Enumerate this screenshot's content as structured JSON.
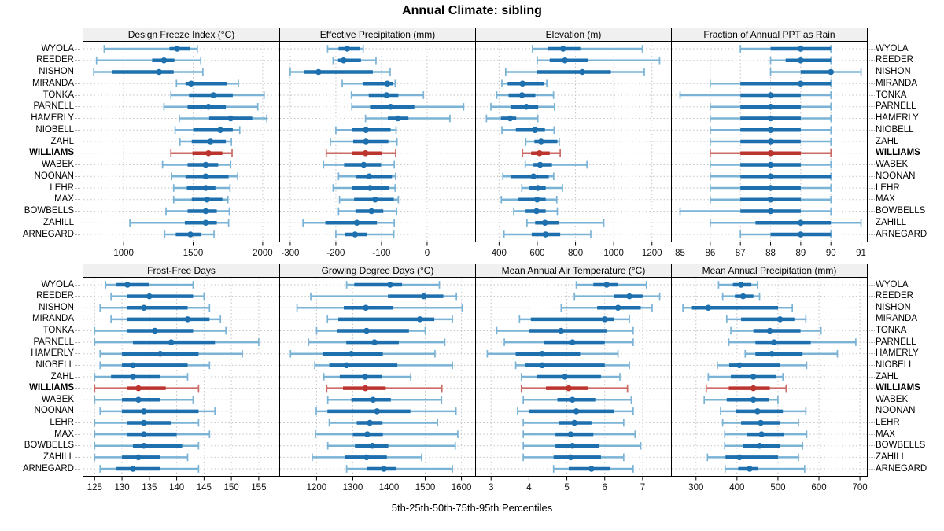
{
  "title": "Annual Climate: sibling",
  "caption": "5th-25th-50th-75th-95th Percentiles",
  "percentile_labels": [
    "5th",
    "25th",
    "50th",
    "75th",
    "95th"
  ],
  "stations": [
    "WYOLA",
    "REEDER",
    "NISHON",
    "MIRANDA",
    "TONKA",
    "PARNELL",
    "HAMERLY",
    "NIOBELL",
    "ZAHL",
    "WILLIAMS",
    "WABEK",
    "NOONAN",
    "LEHR",
    "MAX",
    "BOWBELLS",
    "ZAHILL",
    "ARNEGARD"
  ],
  "highlight_station": "WILLIAMS",
  "colors": {
    "blue": "#1d6fad",
    "blue_light": "#7ab3d6",
    "red": "#bb342e",
    "red_light": "#cc6b66",
    "grid": "#c6c6c6",
    "border": "#000000",
    "header_bg": "#f0f0f0"
  },
  "chart_data": [
    {
      "type": "dot-whisker",
      "title": "Design Freeze Index (°C)",
      "row": 1,
      "col": 1,
      "ticks": [
        1000,
        1500,
        2000
      ],
      "xlim": [
        705,
        2125
      ],
      "values": [
        [
          860,
          1330,
          1385,
          1475,
          1530
        ],
        [
          805,
          1205,
          1290,
          1365,
          1555
        ],
        [
          785,
          915,
          1255,
          1360,
          1570
        ],
        [
          1380,
          1445,
          1485,
          1745,
          1825
        ],
        [
          1340,
          1470,
          1645,
          1785,
          2010
        ],
        [
          1290,
          1460,
          1610,
          1735,
          1965
        ],
        [
          1400,
          1615,
          1770,
          1925,
          2030
        ],
        [
          1370,
          1500,
          1695,
          1785,
          1835
        ],
        [
          1405,
          1490,
          1625,
          1735,
          1775
        ],
        [
          1340,
          1495,
          1610,
          1710,
          1780
        ],
        [
          1280,
          1460,
          1590,
          1680,
          1770
        ],
        [
          1345,
          1445,
          1590,
          1755,
          1820
        ],
        [
          1360,
          1455,
          1590,
          1660,
          1765
        ],
        [
          1360,
          1490,
          1600,
          1710,
          1750
        ],
        [
          1305,
          1460,
          1590,
          1670,
          1760
        ],
        [
          1045,
          1440,
          1590,
          1670,
          1755
        ],
        [
          1295,
          1375,
          1480,
          1555,
          1650
        ]
      ]
    },
    {
      "type": "dot-whisker",
      "title": "Effective Precipitation (mm)",
      "row": 1,
      "col": 2,
      "ticks": [
        -300,
        -200,
        -100,
        0
      ],
      "xlim": [
        -324,
        107
      ],
      "values": [
        [
          -218,
          -194,
          -175,
          -148,
          -140
        ],
        [
          -206,
          -195,
          -183,
          -145,
          -112
        ],
        [
          -300,
          -270,
          -238,
          -119,
          -81
        ],
        [
          -186,
          -140,
          -87,
          -74,
          -70
        ],
        [
          -166,
          -128,
          -89,
          -63,
          -8
        ],
        [
          -165,
          -125,
          -80,
          -28,
          80
        ],
        [
          -135,
          -86,
          -64,
          -41,
          50
        ],
        [
          -200,
          -164,
          -134,
          -80,
          -68
        ],
        [
          -212,
          -162,
          -134,
          -85,
          -66
        ],
        [
          -221,
          -165,
          -135,
          -99,
          -69
        ],
        [
          -227,
          -182,
          -139,
          -101,
          -72
        ],
        [
          -194,
          -155,
          -127,
          -77,
          -69
        ],
        [
          -206,
          -165,
          -125,
          -84,
          -70
        ],
        [
          -192,
          -160,
          -114,
          -73,
          -63
        ],
        [
          -194,
          -157,
          -122,
          -96,
          -67
        ],
        [
          -272,
          -223,
          -154,
          -110,
          -72
        ],
        [
          -200,
          -180,
          -158,
          -132,
          -73
        ]
      ]
    },
    {
      "type": "dot-whisker",
      "title": "Elevation (m)",
      "row": 1,
      "col": 3,
      "ticks": [
        400,
        600,
        800,
        1000,
        1200
      ],
      "xlim": [
        275,
        1304
      ],
      "values": [
        [
          575,
          655,
          735,
          825,
          1150
        ],
        [
          600,
          665,
          745,
          865,
          1240
        ],
        [
          435,
          600,
          835,
          985,
          1160
        ],
        [
          415,
          445,
          523,
          635,
          650
        ],
        [
          388,
          450,
          520,
          590,
          685
        ],
        [
          357,
          460,
          543,
          605,
          690
        ],
        [
          334,
          410,
          458,
          490,
          603
        ],
        [
          415,
          488,
          588,
          640,
          688
        ],
        [
          540,
          585,
          620,
          705,
          715
        ],
        [
          523,
          568,
          612,
          665,
          720
        ],
        [
          537,
          580,
          615,
          677,
          860
        ],
        [
          420,
          460,
          580,
          660,
          686
        ],
        [
          519,
          557,
          603,
          644,
          732
        ],
        [
          412,
          502,
          599,
          644,
          702
        ],
        [
          477,
          539,
          596,
          644,
          705
        ],
        [
          546,
          589,
          640,
          713,
          948
        ],
        [
          426,
          571,
          643,
          720,
          880
        ]
      ]
    },
    {
      "type": "dot-whisker",
      "title": "Fraction of Annual PPT as Rain",
      "row": 1,
      "col": 4,
      "ticks": [
        85,
        86,
        87,
        88,
        89,
        90,
        91
      ],
      "xlim": [
        84.7,
        91.22
      ],
      "values": [
        [
          87,
          88,
          89,
          90,
          90
        ],
        [
          88,
          88.5,
          89,
          90,
          90
        ],
        [
          88,
          89,
          90,
          90,
          91
        ],
        [
          86,
          87,
          89,
          90,
          90
        ],
        [
          85,
          87,
          88,
          89,
          90
        ],
        [
          86,
          87,
          88,
          89,
          90
        ],
        [
          86,
          87,
          88,
          89,
          90
        ],
        [
          86,
          87,
          88,
          89,
          90
        ],
        [
          86,
          87,
          88,
          89,
          90
        ],
        [
          86,
          87,
          88,
          89,
          90
        ],
        [
          86,
          87,
          88,
          89,
          90
        ],
        [
          86,
          87,
          88,
          90,
          90
        ],
        [
          86,
          87,
          88,
          89,
          90
        ],
        [
          86,
          87,
          88,
          89,
          90
        ],
        [
          85,
          87,
          88,
          89,
          90
        ],
        [
          86,
          87.5,
          89,
          90,
          91
        ],
        [
          87,
          88,
          89,
          90,
          90
        ]
      ]
    },
    {
      "type": "dot-whisker",
      "title": "Frost-Free Days",
      "row": 2,
      "col": 1,
      "ticks": [
        125,
        130,
        135,
        140,
        145,
        150,
        155
      ],
      "xlim": [
        122.8,
        158.9
      ],
      "values": [
        [
          127,
          129,
          131,
          135,
          143
        ],
        [
          128,
          131,
          135,
          143,
          145
        ],
        [
          126,
          131,
          134,
          142,
          146
        ],
        [
          128,
          131,
          142,
          146,
          148
        ],
        [
          125,
          131,
          136,
          143,
          149
        ],
        [
          125,
          132,
          139,
          147,
          155
        ],
        [
          126,
          130,
          137,
          144,
          152
        ],
        [
          126,
          130,
          132,
          142,
          146
        ],
        [
          125,
          128,
          132,
          137,
          142
        ],
        [
          125,
          131,
          133,
          138,
          144
        ],
        [
          125,
          130,
          133,
          137,
          143
        ],
        [
          126,
          130,
          134,
          144,
          147
        ],
        [
          125,
          131,
          134,
          139,
          144
        ],
        [
          125,
          131,
          134,
          140,
          146
        ],
        [
          125,
          132,
          134,
          141,
          144
        ],
        [
          125,
          130,
          133,
          137,
          142
        ],
        [
          126,
          129,
          132,
          137,
          144
        ]
      ]
    },
    {
      "type": "dot-whisker",
      "title": "Growing Degree Days (°C)",
      "row": 2,
      "col": 2,
      "ticks": [
        1200,
        1300,
        1400,
        1500,
        1600
      ],
      "xlim": [
        1097,
        1640
      ],
      "values": [
        [
          1283,
          1304,
          1403,
          1436,
          1539
        ],
        [
          1184,
          1397,
          1496,
          1550,
          1586
        ],
        [
          1146,
          1275,
          1336,
          1412,
          1602
        ],
        [
          1230,
          1260,
          1485,
          1525,
          1575
        ],
        [
          1200,
          1257,
          1338,
          1455,
          1500
        ],
        [
          1178,
          1282,
          1360,
          1427,
          1554
        ],
        [
          1128,
          1217,
          1296,
          1383,
          1527
        ],
        [
          1195,
          1235,
          1283,
          1423,
          1575
        ],
        [
          1220,
          1264,
          1334,
          1380,
          1460
        ],
        [
          1228,
          1273,
          1335,
          1391,
          1546
        ],
        [
          1231,
          1296,
          1356,
          1405,
          1545
        ],
        [
          1199,
          1230,
          1367,
          1459,
          1585
        ],
        [
          1235,
          1311,
          1347,
          1382,
          1534
        ],
        [
          1197,
          1300,
          1340,
          1383,
          1590
        ],
        [
          1231,
          1306,
          1354,
          1398,
          1583
        ],
        [
          1188,
          1278,
          1338,
          1394,
          1490
        ],
        [
          1283,
          1340,
          1386,
          1420,
          1575
        ]
      ]
    },
    {
      "type": "dot-whisker",
      "title": "Mean Annual Air Temperature (°C)",
      "row": 2,
      "col": 3,
      "ticks": [
        3,
        4,
        5,
        6,
        7
      ],
      "xlim": [
        2.58,
        7.77
      ],
      "values": [
        [
          5.25,
          5.7,
          6.05,
          6.35,
          7.1
        ],
        [
          5.2,
          6.25,
          6.65,
          7.0,
          7.45
        ],
        [
          4.85,
          5.8,
          6.35,
          6.95,
          7.25
        ],
        [
          3.75,
          4.05,
          6.0,
          6.25,
          6.65
        ],
        [
          3.15,
          4.0,
          4.85,
          6.05,
          6.75
        ],
        [
          3.35,
          4.4,
          5.15,
          6.0,
          6.75
        ],
        [
          2.9,
          3.65,
          4.35,
          5.35,
          6.35
        ],
        [
          3.65,
          3.9,
          4.35,
          6.0,
          6.65
        ],
        [
          3.8,
          4.2,
          4.95,
          5.9,
          6.4
        ],
        [
          3.8,
          4.45,
          5.05,
          5.55,
          6.6
        ],
        [
          3.85,
          4.75,
          5.15,
          5.75,
          6.7
        ],
        [
          3.7,
          4.0,
          5.25,
          6.25,
          6.75
        ],
        [
          3.85,
          4.8,
          5.2,
          5.65,
          6.5
        ],
        [
          3.85,
          4.7,
          5.1,
          5.7,
          6.8
        ],
        [
          3.85,
          4.7,
          5.15,
          5.85,
          6.95
        ],
        [
          3.85,
          4.65,
          5.1,
          5.9,
          6.5
        ],
        [
          4.65,
          5.05,
          5.65,
          6.15,
          6.75
        ]
      ]
    },
    {
      "type": "dot-whisker",
      "title": "Mean Annual Precipitation (mm)",
      "row": 2,
      "col": 4,
      "ticks": [
        300,
        400,
        500,
        600,
        700
      ],
      "xlim": [
        239,
        719
      ],
      "values": [
        [
          355,
          390,
          410,
          435,
          450
        ],
        [
          365,
          395,
          415,
          440,
          455
        ],
        [
          268,
          290,
          330,
          500,
          535
        ],
        [
          375,
          410,
          505,
          540,
          568
        ],
        [
          385,
          440,
          480,
          555,
          605
        ],
        [
          380,
          445,
          490,
          580,
          690
        ],
        [
          420,
          445,
          485,
          560,
          645
        ],
        [
          352,
          381,
          406,
          504,
          570
        ],
        [
          330,
          385,
          440,
          495,
          512
        ],
        [
          325,
          380,
          440,
          480,
          520
        ],
        [
          320,
          375,
          440,
          477,
          500
        ],
        [
          360,
          397,
          450,
          512,
          568
        ],
        [
          365,
          410,
          458,
          505,
          550
        ],
        [
          370,
          425,
          460,
          515,
          570
        ],
        [
          370,
          415,
          455,
          505,
          560
        ],
        [
          328,
          372,
          406,
          500,
          550
        ],
        [
          371,
          403,
          431,
          451,
          565
        ]
      ]
    }
  ]
}
